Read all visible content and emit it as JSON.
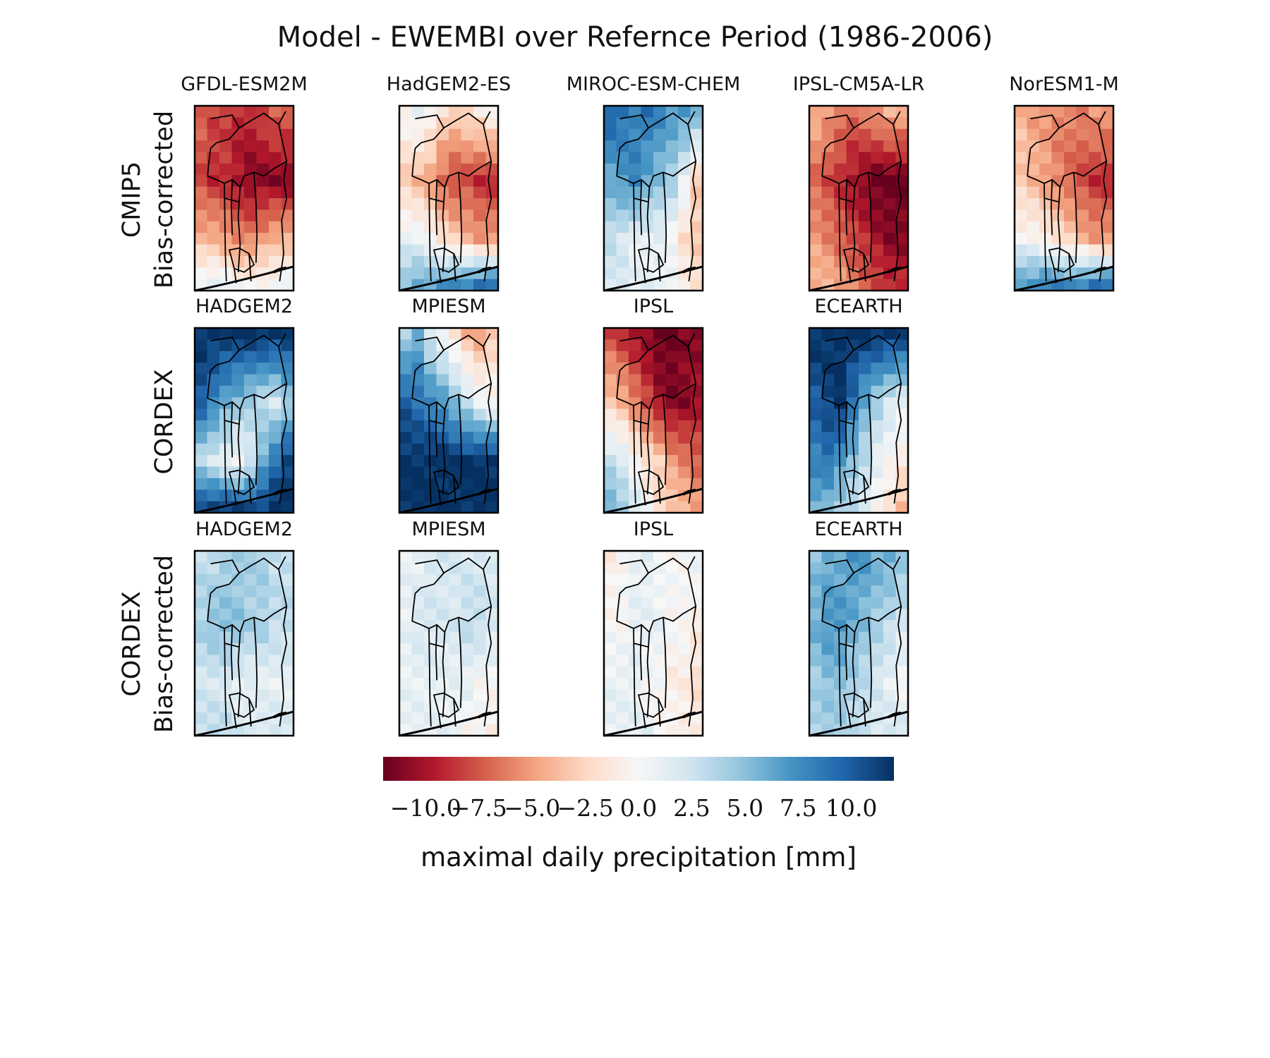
{
  "title": "Model - EWEMBI over Refernce Period (1986-2006)",
  "rows": [
    {
      "label_line1": "CMIP5",
      "label_line2": "Bias-corrected"
    },
    {
      "label_line1": "CORDEX",
      "label_line2": ""
    },
    {
      "label_line1": "CORDEX",
      "label_line2": "Bias-corrected"
    }
  ],
  "colorbar": {
    "label": "maximal daily precipitation [mm]",
    "ticks": [
      "−10.0",
      "−7.5",
      "−5.0",
      "−2.5",
      "0.0",
      "2.5",
      "5.0",
      "7.5",
      "10.0"
    ],
    "tick_values": [
      -10,
      -7.5,
      -5,
      -2.5,
      0,
      2.5,
      5,
      7.5,
      10
    ],
    "vmin": -12,
    "vmax": 12,
    "colormap": "RdBu",
    "colors": [
      "#67001f",
      "#b2182b",
      "#d6604d",
      "#f4a582",
      "#fddbc7",
      "#f7f7f7",
      "#d1e5f0",
      "#92c5de",
      "#4393c3",
      "#2166ac",
      "#053061"
    ]
  },
  "chart_data": {
    "type": "heatmap",
    "title": "Model - EWEMBI over Refernce Period (1986-2006)",
    "colorbar_label": "maximal daily precipitation [mm]",
    "grid_cells": "8 columns x 16 rows per panel (values in mm, approximate)",
    "panels": [
      {
        "row": 0,
        "col": 0,
        "name": "GFDL-ESM2M",
        "top": [
          -7,
          -8,
          -8,
          -9,
          -9,
          -8,
          -7,
          -7
        ],
        "mid": [
          -8,
          -9,
          -9,
          -10,
          -11,
          -11,
          -11,
          -11
        ],
        "bottom": [
          -4,
          -4,
          -5,
          -6,
          -6,
          -5,
          -4,
          -4
        ],
        "coast": [
          1,
          1,
          1,
          0,
          0,
          0,
          0,
          1
        ]
      },
      {
        "row": 0,
        "col": 1,
        "name": "HadGEM2-ES",
        "top": [
          0,
          1,
          0,
          -2,
          -3,
          -2,
          -1,
          0
        ],
        "mid": [
          -3,
          -4,
          -5,
          -7,
          -8,
          -8,
          -9,
          -9
        ],
        "bottom": [
          1,
          1,
          0,
          -2,
          -3,
          -4,
          -5,
          -5
        ],
        "coast": [
          5,
          6,
          6,
          7,
          8,
          8,
          9,
          9
        ]
      },
      {
        "row": 0,
        "col": 2,
        "name": "MIROC-ESM-CHEM",
        "top": [
          10,
          9,
          8,
          9,
          8,
          7,
          7,
          6
        ],
        "mid": [
          6,
          7,
          8,
          6,
          5,
          4,
          1,
          -3
        ],
        "bottom": [
          3,
          2,
          1,
          1,
          1,
          0,
          -2,
          -3
        ],
        "coast": [
          2,
          2,
          1,
          1,
          1,
          1,
          -1,
          -2
        ]
      },
      {
        "row": 0,
        "col": 3,
        "name": "IPSL-CM5A-LR",
        "top": [
          -4,
          -5,
          -6,
          -7,
          -6,
          -5,
          -4,
          -4
        ],
        "mid": [
          -7,
          -8,
          -9,
          -10,
          -11,
          -12,
          -12,
          -12
        ],
        "bottom": [
          -5,
          -6,
          -7,
          -8,
          -9,
          -10,
          -11,
          -11
        ],
        "coast": [
          -4,
          -4,
          -5,
          -6,
          -7,
          -8,
          -9,
          -9
        ]
      },
      {
        "row": 0,
        "col": 4,
        "name": "NorESM1-M",
        "top": [
          -4,
          -5,
          -5,
          -6,
          -6,
          -6,
          -5,
          -5
        ],
        "mid": [
          -3,
          -4,
          -5,
          -6,
          -7,
          -8,
          -9,
          -9
        ],
        "bottom": [
          0,
          0,
          -1,
          -2,
          -3,
          -4,
          -5,
          -5
        ],
        "coast": [
          7,
          7,
          8,
          8,
          8,
          8,
          9,
          9
        ]
      },
      {
        "row": 1,
        "col": 0,
        "name": "HADGEM2",
        "top": [
          12,
          12,
          12,
          12,
          12,
          12,
          12,
          12
        ],
        "mid": [
          10,
          8,
          6,
          5,
          4,
          3,
          2,
          4
        ],
        "bottom": [
          3,
          2,
          1,
          0,
          2,
          6,
          9,
          11
        ],
        "coast": [
          11,
          11,
          11,
          11,
          11,
          11,
          12,
          12
        ]
      },
      {
        "row": 1,
        "col": 1,
        "name": "MPIESM",
        "top": [
          4,
          6,
          2,
          0,
          -2,
          -4,
          -5,
          -3
        ],
        "mid": [
          10,
          9,
          8,
          7,
          5,
          3,
          1,
          0
        ],
        "bottom": [
          12,
          12,
          12,
          12,
          12,
          12,
          12,
          12
        ],
        "coast": [
          12,
          12,
          12,
          12,
          12,
          12,
          12,
          12
        ]
      },
      {
        "row": 1,
        "col": 2,
        "name": "IPSL",
        "top": [
          -8,
          -9,
          -10,
          -11,
          -12,
          -12,
          -11,
          -11
        ],
        "mid": [
          -3,
          -4,
          -6,
          -8,
          -10,
          -11,
          -11,
          -10
        ],
        "bottom": [
          3,
          2,
          0,
          -2,
          -3,
          -5,
          -6,
          -7
        ],
        "coast": [
          6,
          4,
          2,
          0,
          -2,
          -3,
          -4,
          -5
        ]
      },
      {
        "row": 1,
        "col": 3,
        "name": "ECEARTH",
        "top": [
          12,
          12,
          12,
          12,
          12,
          12,
          12,
          12
        ],
        "mid": [
          10,
          11,
          12,
          9,
          6,
          4,
          2,
          1
        ],
        "bottom": [
          8,
          9,
          7,
          5,
          3,
          1,
          0,
          -1
        ],
        "coast": [
          6,
          5,
          4,
          3,
          2,
          0,
          -2,
          -4
        ]
      },
      {
        "row": 2,
        "col": 0,
        "name": "HADGEM2",
        "top": [
          3,
          3,
          4,
          4,
          4,
          4,
          3,
          3
        ],
        "mid": [
          4,
          5,
          5,
          5,
          4,
          4,
          3,
          3
        ],
        "bottom": [
          2,
          2,
          2,
          1,
          1,
          1,
          1,
          1
        ],
        "coast": [
          3,
          3,
          3,
          2,
          2,
          2,
          2,
          2
        ]
      },
      {
        "row": 2,
        "col": 1,
        "name": "MPIESM",
        "top": [
          1,
          1,
          2,
          2,
          2,
          2,
          2,
          2
        ],
        "mid": [
          1,
          2,
          2,
          2,
          2,
          3,
          3,
          2
        ],
        "bottom": [
          1,
          1,
          1,
          1,
          1,
          1,
          0,
          0
        ],
        "coast": [
          1,
          1,
          1,
          1,
          1,
          0,
          0,
          -1
        ]
      },
      {
        "row": 2,
        "col": 2,
        "name": "IPSL",
        "top": [
          -1,
          0,
          1,
          1,
          0,
          0,
          0,
          1
        ],
        "mid": [
          0,
          0,
          1,
          1,
          1,
          0,
          0,
          -1
        ],
        "bottom": [
          1,
          1,
          1,
          0,
          0,
          -1,
          -1,
          -2
        ],
        "coast": [
          1,
          1,
          1,
          1,
          0,
          0,
          -1,
          -1
        ]
      },
      {
        "row": 2,
        "col": 3,
        "name": "ECEARTH",
        "top": [
          5,
          6,
          6,
          7,
          7,
          6,
          6,
          5
        ],
        "mid": [
          6,
          7,
          7,
          6,
          5,
          4,
          3,
          2
        ],
        "bottom": [
          4,
          5,
          5,
          4,
          3,
          2,
          1,
          0
        ],
        "coast": [
          4,
          4,
          4,
          3,
          3,
          2,
          2,
          2
        ]
      }
    ]
  }
}
